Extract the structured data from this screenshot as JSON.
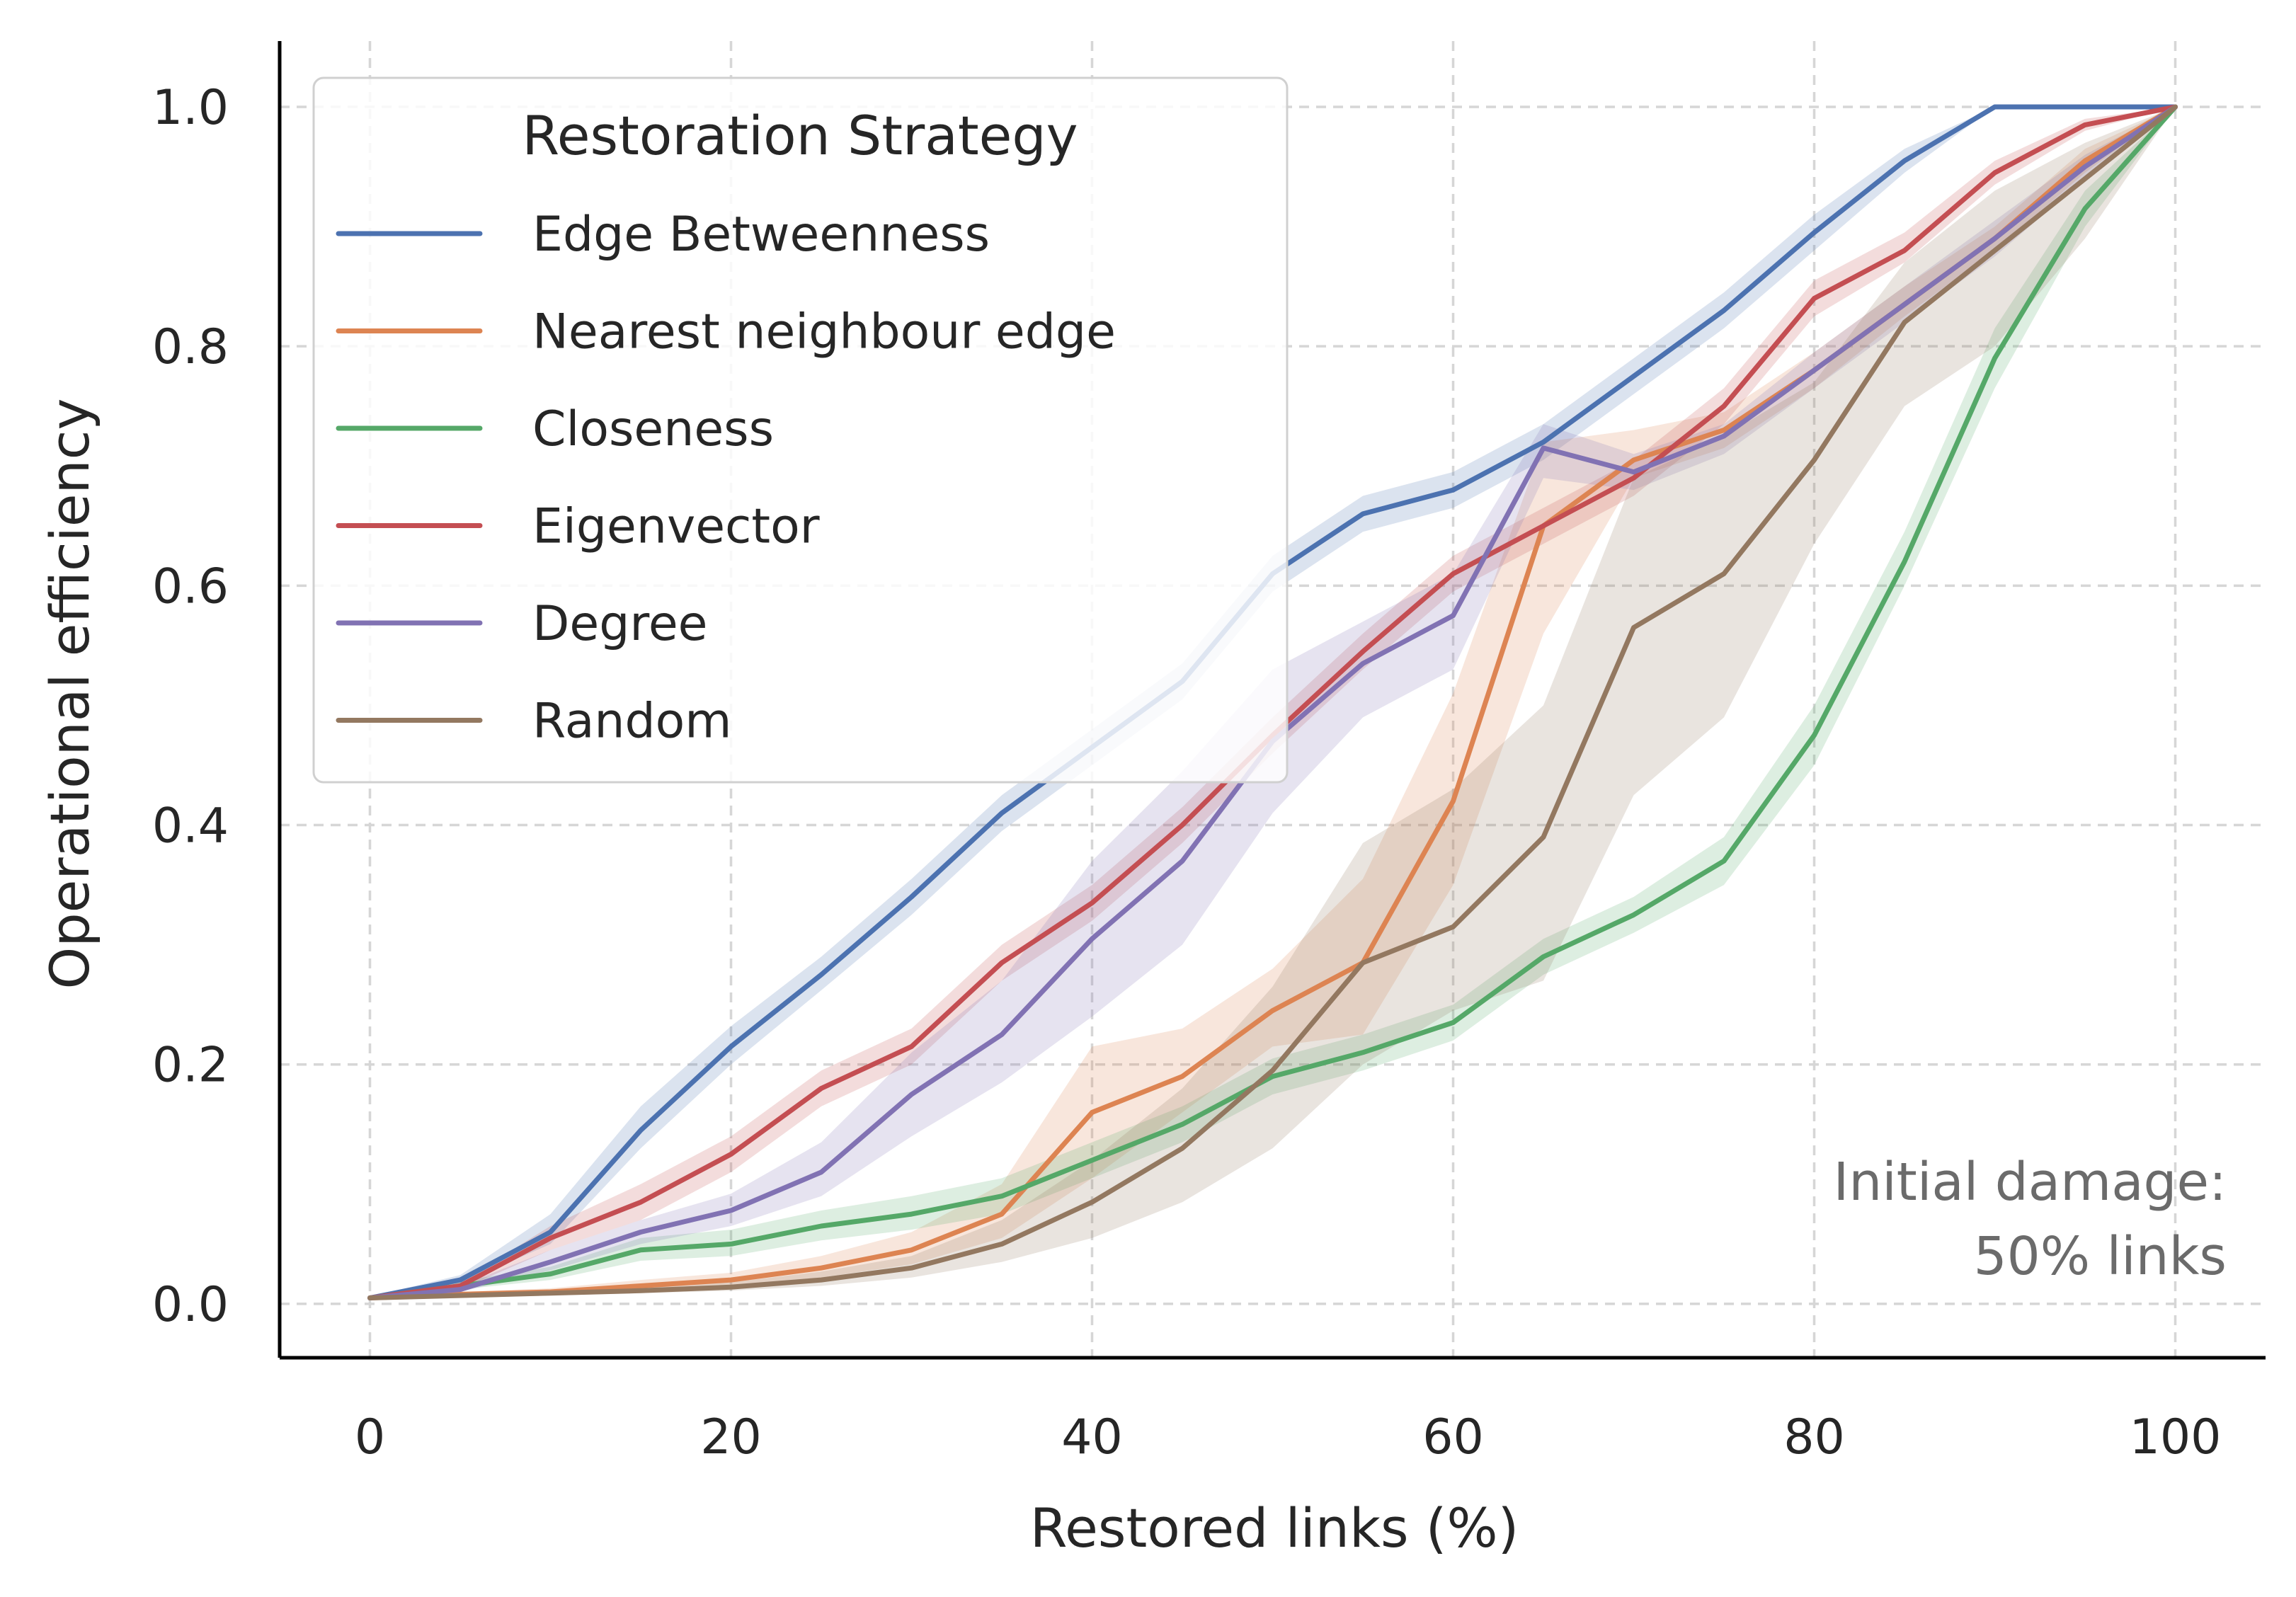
{
  "chart_data": {
    "type": "line",
    "xlabel": "Restored links (%)",
    "ylabel": "Operational efficiency",
    "xlim": [
      -5,
      105
    ],
    "ylim": [
      -0.045,
      1.055
    ],
    "xticks": [
      0,
      20,
      40,
      60,
      80,
      100
    ],
    "yticks": [
      0.0,
      0.2,
      0.4,
      0.6,
      0.8,
      1.0
    ],
    "xtick_labels": [
      "0",
      "20",
      "40",
      "60",
      "80",
      "100"
    ],
    "ytick_labels": [
      "0.0",
      "0.2",
      "0.4",
      "0.6",
      "0.8",
      "1.0"
    ],
    "grid": true,
    "legend": {
      "title": "Restoration Strategy",
      "placement": "upper-left"
    },
    "annotation": [
      "Initial damage:",
      "50% links"
    ],
    "x": [
      0,
      5,
      10,
      15,
      20,
      25,
      30,
      35,
      40,
      45,
      50,
      55,
      60,
      65,
      70,
      75,
      80,
      85,
      90,
      95,
      100
    ],
    "series": [
      {
        "name": "Edge Betweenness",
        "color": "#4c72b0",
        "values": [
          0.005,
          0.02,
          0.06,
          0.145,
          0.215,
          0.275,
          0.34,
          0.41,
          0.465,
          0.52,
          0.61,
          0.66,
          0.68,
          0.72,
          0.775,
          0.83,
          0.895,
          0.955,
          1.0,
          1.0,
          1.0
        ],
        "lower": [
          0.005,
          0.017,
          0.05,
          0.13,
          0.2,
          0.262,
          0.325,
          0.395,
          0.45,
          0.505,
          0.595,
          0.645,
          0.665,
          0.705,
          0.76,
          0.815,
          0.88,
          0.945,
          1.0,
          1.0,
          1.0
        ],
        "upper": [
          0.006,
          0.024,
          0.075,
          0.165,
          0.232,
          0.29,
          0.355,
          0.425,
          0.48,
          0.535,
          0.625,
          0.675,
          0.695,
          0.735,
          0.79,
          0.845,
          0.91,
          0.965,
          1.0,
          1.0,
          1.0
        ]
      },
      {
        "name": "Nearest neighbour edge",
        "color": "#dd8452",
        "values": [
          0.005,
          0.008,
          0.01,
          0.015,
          0.02,
          0.03,
          0.045,
          0.075,
          0.16,
          0.19,
          0.245,
          0.285,
          0.42,
          0.65,
          0.705,
          0.73,
          0.78,
          0.835,
          0.89,
          0.955,
          1.0
        ],
        "lower": [
          0.004,
          0.006,
          0.008,
          0.011,
          0.015,
          0.022,
          0.033,
          0.055,
          0.105,
          0.16,
          0.215,
          0.225,
          0.35,
          0.56,
          0.69,
          0.715,
          0.765,
          0.825,
          0.88,
          0.945,
          1.0
        ],
        "upper": [
          0.006,
          0.01,
          0.013,
          0.02,
          0.026,
          0.04,
          0.06,
          0.1,
          0.215,
          0.23,
          0.28,
          0.355,
          0.51,
          0.72,
          0.73,
          0.745,
          0.795,
          0.85,
          0.9,
          0.965,
          1.0
        ]
      },
      {
        "name": "Closeness",
        "color": "#55a868",
        "values": [
          0.005,
          0.015,
          0.025,
          0.045,
          0.05,
          0.065,
          0.075,
          0.09,
          0.12,
          0.15,
          0.19,
          0.21,
          0.235,
          0.29,
          0.325,
          0.37,
          0.475,
          0.62,
          0.79,
          0.915,
          1.0
        ],
        "lower": [
          0.004,
          0.012,
          0.02,
          0.036,
          0.04,
          0.053,
          0.062,
          0.075,
          0.105,
          0.135,
          0.175,
          0.195,
          0.22,
          0.275,
          0.31,
          0.35,
          0.45,
          0.6,
          0.765,
          0.9,
          1.0
        ],
        "upper": [
          0.006,
          0.019,
          0.031,
          0.055,
          0.062,
          0.078,
          0.09,
          0.105,
          0.135,
          0.165,
          0.205,
          0.225,
          0.25,
          0.305,
          0.34,
          0.39,
          0.5,
          0.645,
          0.815,
          0.93,
          1.0
        ]
      },
      {
        "name": "Eigenvector",
        "color": "#c44e52",
        "values": [
          0.005,
          0.015,
          0.055,
          0.085,
          0.125,
          0.18,
          0.215,
          0.285,
          0.335,
          0.4,
          0.475,
          0.545,
          0.61,
          0.65,
          0.69,
          0.75,
          0.84,
          0.88,
          0.945,
          0.985,
          1.0
        ],
        "lower": [
          0.004,
          0.012,
          0.045,
          0.07,
          0.11,
          0.165,
          0.2,
          0.27,
          0.32,
          0.385,
          0.46,
          0.53,
          0.595,
          0.635,
          0.675,
          0.735,
          0.825,
          0.87,
          0.935,
          0.98,
          1.0
        ],
        "upper": [
          0.006,
          0.018,
          0.065,
          0.1,
          0.14,
          0.195,
          0.23,
          0.3,
          0.35,
          0.415,
          0.49,
          0.56,
          0.625,
          0.665,
          0.705,
          0.765,
          0.855,
          0.895,
          0.955,
          0.99,
          1.0
        ]
      },
      {
        "name": "Degree",
        "color": "#8172b3",
        "values": [
          0.005,
          0.012,
          0.035,
          0.06,
          0.078,
          0.11,
          0.175,
          0.225,
          0.305,
          0.37,
          0.47,
          0.535,
          0.575,
          0.715,
          0.695,
          0.725,
          0.78,
          0.835,
          0.89,
          0.95,
          1.0
        ],
        "lower": [
          0.004,
          0.01,
          0.028,
          0.05,
          0.065,
          0.09,
          0.14,
          0.185,
          0.24,
          0.3,
          0.41,
          0.49,
          0.53,
          0.69,
          0.68,
          0.71,
          0.765,
          0.82,
          0.875,
          0.94,
          1.0
        ],
        "upper": [
          0.006,
          0.015,
          0.045,
          0.07,
          0.092,
          0.135,
          0.21,
          0.27,
          0.37,
          0.445,
          0.53,
          0.57,
          0.61,
          0.735,
          0.71,
          0.735,
          0.795,
          0.85,
          0.905,
          0.96,
          1.0
        ]
      },
      {
        "name": "Random",
        "color": "#937860",
        "values": [
          0.005,
          0.007,
          0.009,
          0.011,
          0.014,
          0.02,
          0.03,
          0.05,
          0.085,
          0.13,
          0.195,
          0.285,
          0.315,
          0.39,
          0.565,
          0.61,
          0.705,
          0.82,
          0.88,
          0.94,
          1.0
        ],
        "lower": [
          0.004,
          0.005,
          0.007,
          0.009,
          0.011,
          0.015,
          0.022,
          0.035,
          0.055,
          0.085,
          0.13,
          0.2,
          0.245,
          0.27,
          0.425,
          0.49,
          0.635,
          0.75,
          0.8,
          0.89,
          1.0
        ],
        "upper": [
          0.006,
          0.009,
          0.012,
          0.014,
          0.018,
          0.027,
          0.04,
          0.07,
          0.12,
          0.18,
          0.265,
          0.385,
          0.43,
          0.5,
          0.69,
          0.725,
          0.77,
          0.87,
          0.93,
          0.97,
          1.0
        ]
      }
    ]
  }
}
